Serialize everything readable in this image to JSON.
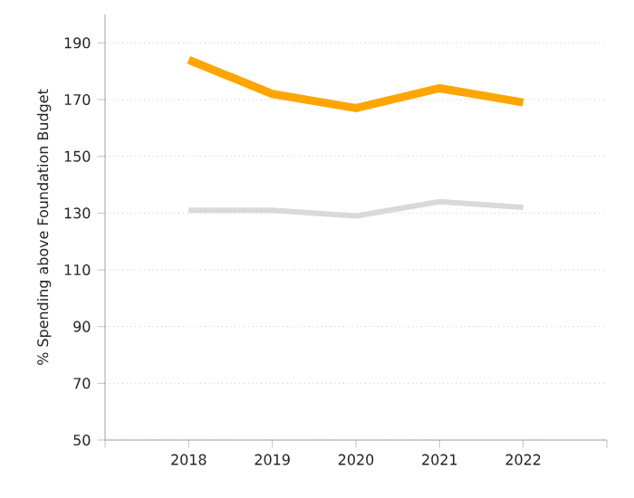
{
  "chart_data": {
    "type": "line",
    "ylabel": "% Spending above Foundation Budget",
    "categories": [
      "2018",
      "2019",
      "2020",
      "2021",
      "2022"
    ],
    "series": [
      {
        "color": "#ffa500",
        "values": [
          184,
          172,
          167,
          174,
          169
        ]
      },
      {
        "color": "#d9d9d9",
        "values": [
          131,
          131,
          129,
          134,
          132
        ]
      }
    ],
    "ylim": [
      50,
      200
    ],
    "yticks": [
      50,
      70,
      90,
      110,
      130,
      150,
      170,
      190
    ],
    "grid": "y",
    "marker": "none",
    "line_style": "solid"
  }
}
